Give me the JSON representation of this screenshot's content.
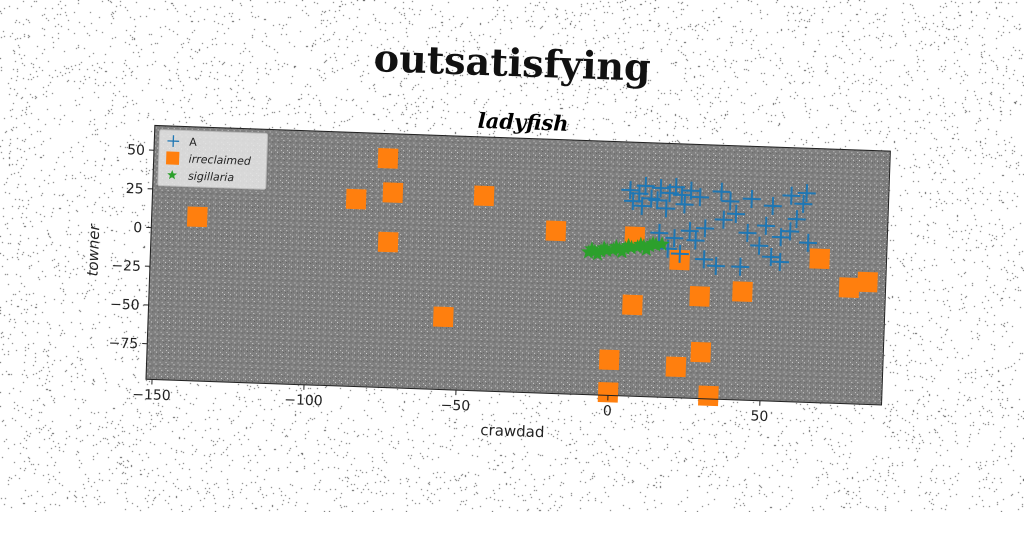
{
  "suptitle": "outsatisfying",
  "chart_data": {
    "type": "scatter",
    "title": "ladyfish",
    "xlabel": "crawdad",
    "ylabel": "towner",
    "xlim": [
      -152,
      90
    ],
    "ylim": [
      -98,
      66
    ],
    "xticks": [
      -150,
      -100,
      -50,
      0,
      50
    ],
    "yticks": [
      -75,
      -50,
      -25,
      0,
      25,
      50
    ],
    "grid": false,
    "legend_position": "top-left",
    "background": "#808080",
    "series": [
      {
        "name": "A",
        "marker": "plus",
        "color": "#1f77b4",
        "points": [
          [
            5,
            35
          ],
          [
            8,
            33
          ],
          [
            10,
            38
          ],
          [
            12,
            30
          ],
          [
            15,
            37
          ],
          [
            18,
            34
          ],
          [
            20,
            38
          ],
          [
            22,
            33
          ],
          [
            25,
            36
          ],
          [
            28,
            32
          ],
          [
            6,
            28
          ],
          [
            9,
            25
          ],
          [
            14,
            29
          ],
          [
            17,
            24
          ],
          [
            23,
            27
          ],
          [
            35,
            36
          ],
          [
            38,
            30
          ],
          [
            45,
            32
          ],
          [
            52,
            28
          ],
          [
            58,
            35
          ],
          [
            62,
            30
          ],
          [
            63,
            37
          ],
          [
            36,
            18
          ],
          [
            40,
            22
          ],
          [
            44,
            10
          ],
          [
            50,
            15
          ],
          [
            55,
            8
          ],
          [
            58,
            12
          ],
          [
            60,
            20
          ],
          [
            64,
            5
          ],
          [
            25,
            10
          ],
          [
            27,
            4
          ],
          [
            30,
            12
          ],
          [
            20,
            5
          ],
          [
            15,
            8
          ],
          [
            18,
            -2
          ],
          [
            22,
            -5
          ],
          [
            30,
            -8
          ],
          [
            48,
            2
          ],
          [
            52,
            -5
          ],
          [
            55,
            -8
          ],
          [
            42,
            -12
          ],
          [
            34,
            -12
          ]
        ]
      },
      {
        "name": "irreclaimed",
        "marker": "square",
        "color": "#ff7f0e",
        "points": [
          [
            -137,
            8
          ],
          [
            -75,
            50
          ],
          [
            -85,
            23
          ],
          [
            -73,
            28
          ],
          [
            -74,
            -4
          ],
          [
            -43,
            28
          ],
          [
            -19,
            7
          ],
          [
            -55,
            -51
          ],
          [
            7,
            -39
          ],
          [
            0,
            -75
          ],
          [
            0,
            -96
          ],
          [
            22,
            -78
          ],
          [
            30,
            -68
          ],
          [
            33,
            -96
          ],
          [
            29,
            -32
          ],
          [
            43,
            -28
          ],
          [
            22,
            -9
          ],
          [
            68,
            -5
          ],
          [
            78,
            -23
          ],
          [
            84,
            -19
          ],
          [
            7,
            5
          ]
        ]
      },
      {
        "name": "sigillaria",
        "marker": "star",
        "color": "#2ca02c",
        "points": [
          [
            -8,
            -6
          ],
          [
            -6,
            -5.5
          ],
          [
            -4,
            -5
          ],
          [
            -2,
            -4.5
          ],
          [
            0,
            -4
          ],
          [
            2,
            -3.5
          ],
          [
            4,
            -2.8
          ],
          [
            6,
            -2.2
          ],
          [
            8,
            -1.6
          ],
          [
            10,
            -1
          ],
          [
            12,
            -0.4
          ],
          [
            14,
            0.2
          ],
          [
            16,
            0.8
          ],
          [
            -7,
            -4
          ],
          [
            -3,
            -3
          ],
          [
            1,
            -2
          ],
          [
            5,
            -1
          ],
          [
            9,
            0
          ],
          [
            13,
            1
          ],
          [
            -5,
            -7
          ],
          [
            3,
            -5
          ],
          [
            11,
            -3
          ]
        ]
      }
    ]
  }
}
